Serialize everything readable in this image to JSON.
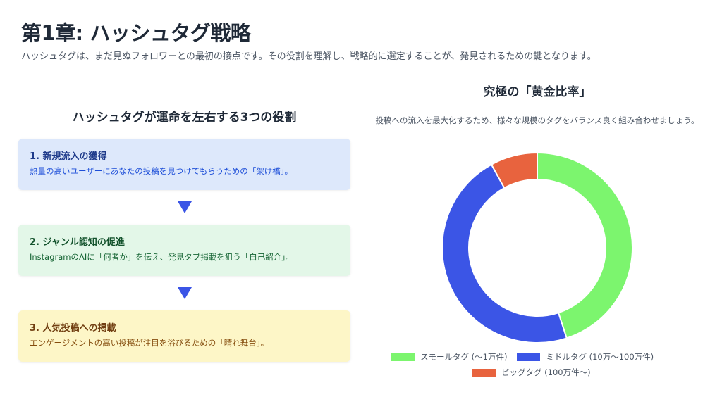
{
  "header": {
    "title": "第1章: ハッシュタグ戦略",
    "subtitle": "ハッシュタグは、まだ見ぬフォロワーとの最初の接点です。その役割を理解し、戦略的に選定することが、発見されるための鍵となります。"
  },
  "roles": {
    "heading": "ハッシュタグが運命を左右する3つの役割",
    "cards": [
      {
        "title": "1. 新規流入の獲得",
        "desc": "熱量の高いユーザーにあなたの投稿を見つけてもらうための「架け橋」。",
        "bg": "#dde8fb",
        "title_color": "#1e3a8a",
        "desc_color": "#1d4ed8"
      },
      {
        "title": "2. ジャンル認知の促進",
        "desc": "InstagramのAIに「何者か」を伝え、発見タブ掲載を狙う「自己紹介」。",
        "bg": "#e3f7e8",
        "title_color": "#14532d",
        "desc_color": "#166534"
      },
      {
        "title": "3. 人気投稿への掲載",
        "desc": "エンゲージメントの高い投稿が注目を浴びるための「晴れ舞台」。",
        "bg": "#fdf6c7",
        "title_color": "#713f12",
        "desc_color": "#854d0e"
      }
    ],
    "arrow_color": "#3b55e6"
  },
  "chart": {
    "title": "究極の「黄金比率」",
    "desc": "投稿への流入を最大化するため、様々な規模のタグをバランス良く組み合わせましょう。"
  },
  "chart_data": {
    "type": "pie",
    "variant": "doughnut",
    "title": "究極の「黄金比率」",
    "series": [
      {
        "name": "スモールタグ (〜1万件)",
        "value": 45,
        "color": "#7cf56e"
      },
      {
        "name": "ミドルタグ (10万〜100万件)",
        "value": 47,
        "color": "#3b55e6"
      },
      {
        "name": "ビッグタグ (100万件〜)",
        "value": 8,
        "color": "#e8633e"
      }
    ],
    "legend": "bottom"
  }
}
